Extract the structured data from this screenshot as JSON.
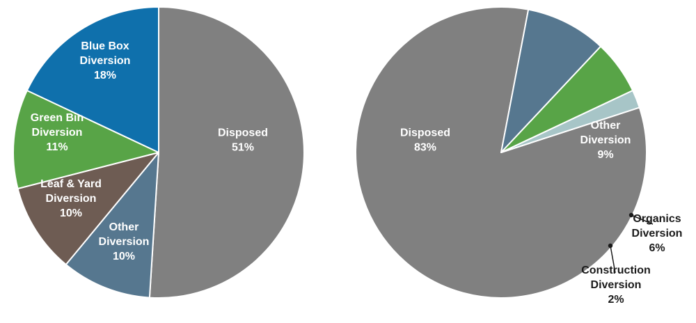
{
  "chart_data": [
    {
      "type": "pie",
      "title": "",
      "slices": [
        {
          "name": "Disposed",
          "value": 51,
          "label_lines": [
            "Disposed",
            "51%"
          ],
          "color": "#808080"
        },
        {
          "name": "Other Diversion",
          "value": 10,
          "label_lines": [
            "Other",
            "Diversion",
            "10%"
          ],
          "color": "#56778f"
        },
        {
          "name": "Leaf & Yard Diversion",
          "value": 10,
          "label_lines": [
            "Leaf & Yard",
            "Diversion",
            "10%"
          ],
          "color": "#6e5c53"
        },
        {
          "name": "Green Bin Diversion",
          "value": 11,
          "label_lines": [
            "Green Bin",
            "Diversion",
            "11%"
          ],
          "color": "#58a447"
        },
        {
          "name": "Blue Box Diversion",
          "value": 18,
          "label_lines": [
            "Blue Box",
            "Diversion",
            "18%"
          ],
          "color": "#0f70ac"
        }
      ]
    },
    {
      "type": "pie",
      "title": "",
      "slices": [
        {
          "name": "Disposed",
          "value": 83,
          "label_lines": [
            "Disposed",
            "83%"
          ],
          "color": "#808080"
        },
        {
          "name": "Other Diversion",
          "value": 9,
          "label_lines": [
            "Other",
            "Diversion",
            "9%"
          ],
          "color": "#56778f"
        },
        {
          "name": "Organics Diversion",
          "value": 6,
          "label_lines": [
            "Organics",
            "Diversion",
            "6%"
          ],
          "color": "#58a447"
        },
        {
          "name": "Construction Diversion",
          "value": 2,
          "label_lines": [
            "Construction",
            "Diversion",
            "2%"
          ],
          "color": "#a7c5c7"
        }
      ]
    }
  ]
}
